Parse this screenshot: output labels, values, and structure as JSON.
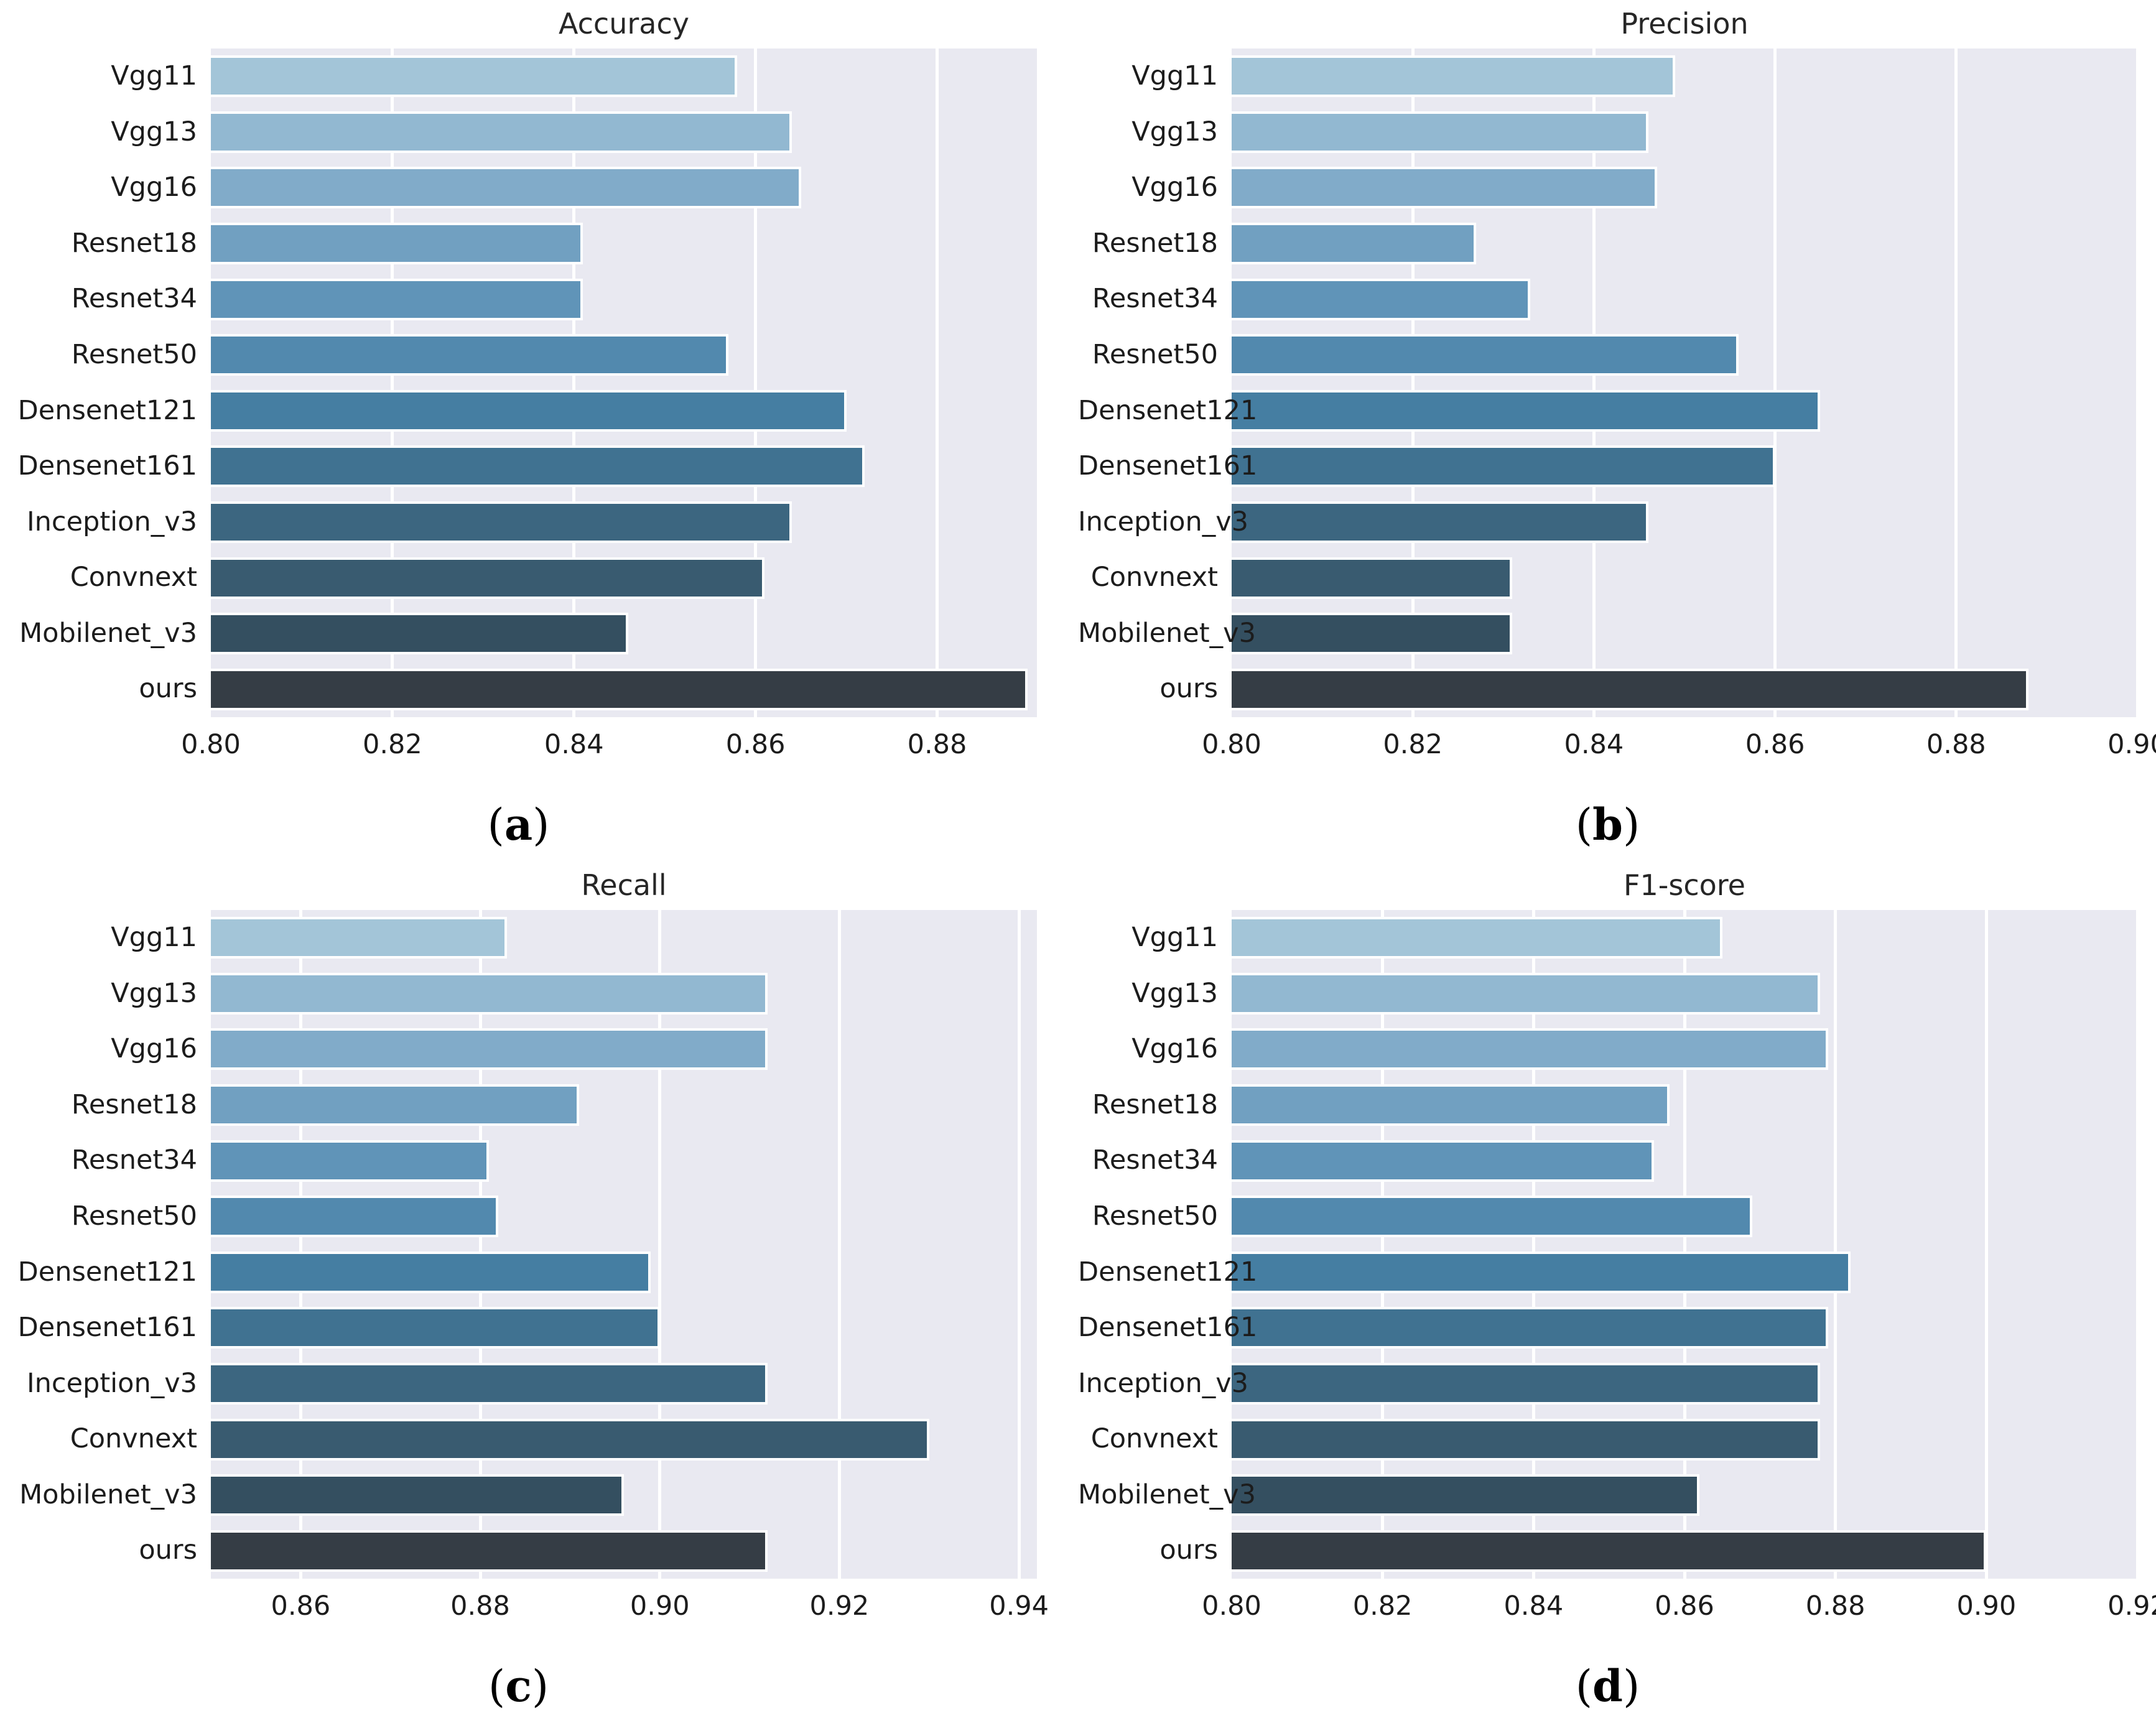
{
  "figure": {
    "description": "2x2 grid of horizontal bar charts comparing models",
    "plot_background": "#e9e9f1",
    "grid_color": "#ffffff",
    "text_color": "#1c1c1c",
    "title_color": "#262626",
    "bar_palette": [
      "#a3c5d8",
      "#92b8d1",
      "#81abc9",
      "#71a0c1",
      "#6094b8",
      "#5289ae",
      "#457ea2",
      "#407291",
      "#3c6680",
      "#395b70",
      "#344f60",
      "#353d45"
    ]
  },
  "chart_data": [
    {
      "type": "bar",
      "orientation": "horizontal",
      "panel": "a",
      "caption": "(a)",
      "title": "Accuracy",
      "grid": true,
      "categories": [
        "Vgg11",
        "Vgg13",
        "Vgg16",
        "Resnet18",
        "Resnet34",
        "Resnet50",
        "Densenet121",
        "Densenet161",
        "Inception_v3",
        "Convnext",
        "Mobilenet_v3",
        "ours"
      ],
      "values": [
        0.858,
        0.864,
        0.865,
        0.841,
        0.841,
        0.857,
        0.87,
        0.872,
        0.864,
        0.861,
        0.846,
        0.89
      ],
      "xlim": [
        0.8,
        0.891
      ],
      "xticks": [
        0.8,
        0.82,
        0.84,
        0.86,
        0.88
      ]
    },
    {
      "type": "bar",
      "orientation": "horizontal",
      "panel": "b",
      "caption": "(b)",
      "title": "Precision",
      "grid": true,
      "categories": [
        "Vgg11",
        "Vgg13",
        "Vgg16",
        "Resnet18",
        "Resnet34",
        "Resnet50",
        "Densenet121",
        "Densenet161",
        "Inception_v3",
        "Convnext",
        "Mobilenet_v3",
        "ours"
      ],
      "values": [
        0.849,
        0.846,
        0.847,
        0.827,
        0.833,
        0.856,
        0.865,
        0.86,
        0.846,
        0.831,
        0.831,
        0.888
      ],
      "xlim": [
        0.8,
        0.9
      ],
      "xticks": [
        0.8,
        0.82,
        0.84,
        0.86,
        0.88,
        0.9
      ]
    },
    {
      "type": "bar",
      "orientation": "horizontal",
      "panel": "c",
      "caption": "(c)",
      "title": "Recall",
      "grid": true,
      "categories": [
        "Vgg11",
        "Vgg13",
        "Vgg16",
        "Resnet18",
        "Resnet34",
        "Resnet50",
        "Densenet121",
        "Densenet161",
        "Inception_v3",
        "Convnext",
        "Mobilenet_v3",
        "ours"
      ],
      "values": [
        0.883,
        0.912,
        0.912,
        0.891,
        0.881,
        0.882,
        0.899,
        0.9,
        0.912,
        0.93,
        0.896,
        0.912
      ],
      "xlim": [
        0.85,
        0.942
      ],
      "xticks": [
        0.86,
        0.88,
        0.9,
        0.92,
        0.94
      ]
    },
    {
      "type": "bar",
      "orientation": "horizontal",
      "panel": "d",
      "caption": "(d)",
      "title": "F1-score",
      "grid": true,
      "categories": [
        "Vgg11",
        "Vgg13",
        "Vgg16",
        "Resnet18",
        "Resnet34",
        "Resnet50",
        "Densenet121",
        "Densenet161",
        "Inception_v3",
        "Convnext",
        "Mobilenet_v3",
        "ours"
      ],
      "values": [
        0.865,
        0.878,
        0.879,
        0.858,
        0.856,
        0.869,
        0.882,
        0.879,
        0.878,
        0.878,
        0.862,
        0.9
      ],
      "xlim": [
        0.8,
        0.92
      ],
      "xticks": [
        0.8,
        0.82,
        0.84,
        0.86,
        0.88,
        0.9,
        0.92
      ]
    }
  ]
}
